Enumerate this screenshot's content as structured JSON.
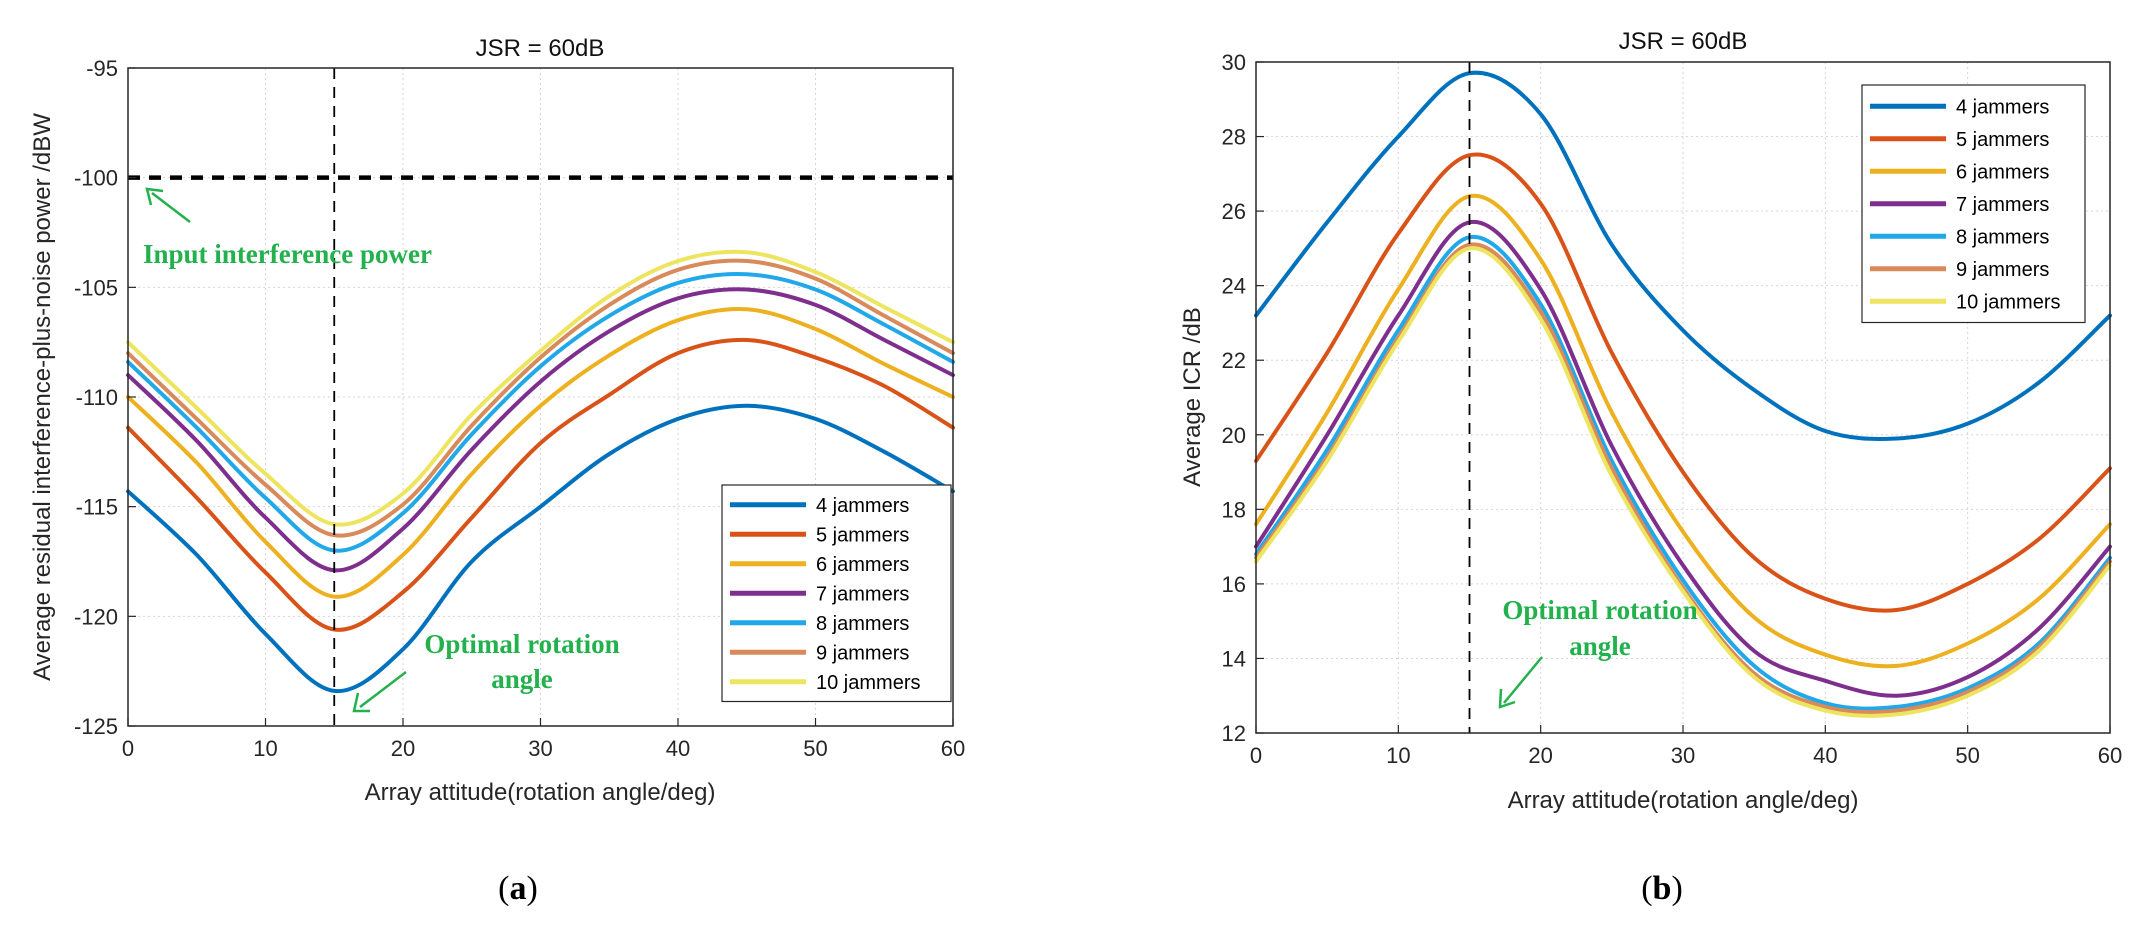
{
  "colors": {
    "4 jammers": "#0072bd",
    "5 jammers": "#d95319",
    "6 jammers": "#edb120",
    "7 jammers": "#7e2f8e",
    "8 jammers": "#20a8e8",
    "9 jammers": "#d98a5a",
    "10 jammers": "#ede560",
    "annotation": "#22b14c"
  },
  "panels": [
    {
      "caption_open": "(",
      "caption_letter": "a",
      "caption_close": ")",
      "annotations": [
        "Input interference power",
        "Optimal rotation",
        "angle"
      ],
      "input_power_line_y": -100,
      "optimal_angle_x": 15
    },
    {
      "caption_open": "(",
      "caption_letter": "b",
      "caption_close": ")",
      "annotations": [
        "Optimal rotation",
        "angle"
      ],
      "optimal_angle_x": 15
    }
  ],
  "chart_data": [
    {
      "type": "line",
      "title": "JSR = 60dB",
      "xlabel": "Array attitude(rotation angle/deg)",
      "ylabel": "Average residual interference-plus-noise power /dBW",
      "xlim": [
        0,
        60
      ],
      "ylim": [
        -125,
        -95
      ],
      "xticks": [
        0,
        10,
        20,
        30,
        40,
        50,
        60
      ],
      "yticks": [
        -95,
        -100,
        -105,
        -110,
        -115,
        -120,
        -125
      ],
      "grid": true,
      "legend_position": "bottom-right",
      "x": [
        0,
        5,
        10,
        15,
        20,
        25,
        30,
        35,
        40,
        45,
        50,
        55,
        60
      ],
      "series": [
        {
          "name": "4 jammers",
          "values": [
            -114.3,
            -117.2,
            -120.8,
            -123.4,
            -121.5,
            -117.5,
            -115.0,
            -112.6,
            -111.0,
            -110.4,
            -111.0,
            -112.5,
            -114.3
          ]
        },
        {
          "name": "5 jammers",
          "values": [
            -111.4,
            -114.6,
            -118.0,
            -120.6,
            -118.9,
            -115.5,
            -112.1,
            -109.9,
            -108.0,
            -107.4,
            -108.2,
            -109.5,
            -111.4
          ]
        },
        {
          "name": "6 jammers",
          "values": [
            -110.0,
            -113.0,
            -116.6,
            -119.1,
            -117.2,
            -113.5,
            -110.4,
            -108.1,
            -106.5,
            -106.0,
            -106.9,
            -108.5,
            -110.0
          ]
        },
        {
          "name": "7 jammers",
          "values": [
            -109.0,
            -112.0,
            -115.5,
            -117.9,
            -116.0,
            -112.4,
            -109.3,
            -107.0,
            -105.5,
            -105.1,
            -105.8,
            -107.4,
            -109.0
          ]
        },
        {
          "name": "8 jammers",
          "values": [
            -108.4,
            -111.4,
            -114.6,
            -117.0,
            -115.3,
            -111.7,
            -108.6,
            -106.3,
            -104.8,
            -104.4,
            -105.1,
            -106.7,
            -108.4
          ]
        },
        {
          "name": "9 jammers",
          "values": [
            -108.0,
            -111.0,
            -114.0,
            -116.3,
            -114.9,
            -111.3,
            -108.2,
            -105.8,
            -104.2,
            -103.8,
            -104.6,
            -106.3,
            -108.0
          ]
        },
        {
          "name": "10 jammers",
          "values": [
            -107.5,
            -110.5,
            -113.5,
            -115.8,
            -114.4,
            -110.8,
            -107.9,
            -105.4,
            -103.8,
            -103.4,
            -104.3,
            -105.9,
            -107.5
          ]
        }
      ]
    },
    {
      "type": "line",
      "title": "JSR = 60dB",
      "xlabel": "Array attitude(rotation angle/deg)",
      "ylabel": "Average ICR /dB",
      "xlim": [
        0,
        60
      ],
      "ylim": [
        12,
        30
      ],
      "xticks": [
        0,
        10,
        20,
        30,
        40,
        50,
        60
      ],
      "yticks": [
        12,
        14,
        16,
        18,
        20,
        22,
        24,
        26,
        28,
        30
      ],
      "grid": true,
      "legend_position": "top-right",
      "x": [
        0,
        5,
        10,
        15,
        20,
        25,
        30,
        35,
        40,
        45,
        50,
        55,
        60
      ],
      "series": [
        {
          "name": "4 jammers",
          "values": [
            23.2,
            25.7,
            28.0,
            29.7,
            28.6,
            25.1,
            22.8,
            21.2,
            20.1,
            19.9,
            20.3,
            21.4,
            23.2
          ]
        },
        {
          "name": "5 jammers",
          "values": [
            19.3,
            22.2,
            25.4,
            27.5,
            26.2,
            22.2,
            19.0,
            16.7,
            15.6,
            15.3,
            16.0,
            17.2,
            19.1
          ]
        },
        {
          "name": "6 jammers",
          "values": [
            17.6,
            20.6,
            23.9,
            26.4,
            24.7,
            20.6,
            17.4,
            15.1,
            14.1,
            13.8,
            14.4,
            15.6,
            17.6
          ]
        },
        {
          "name": "7 jammers",
          "values": [
            17.0,
            20.0,
            23.2,
            25.7,
            23.9,
            19.7,
            16.5,
            14.2,
            13.4,
            13.0,
            13.5,
            14.8,
            17.0
          ]
        },
        {
          "name": "8 jammers",
          "values": [
            16.8,
            19.6,
            22.8,
            25.3,
            23.5,
            19.3,
            16.1,
            13.8,
            12.8,
            12.7,
            13.2,
            14.4,
            16.7
          ]
        },
        {
          "name": "9 jammers",
          "values": [
            16.7,
            19.4,
            22.6,
            25.1,
            23.3,
            19.1,
            15.9,
            13.6,
            12.7,
            12.6,
            13.1,
            14.3,
            16.6
          ]
        },
        {
          "name": "10 jammers",
          "values": [
            16.6,
            19.3,
            22.5,
            25.0,
            23.1,
            18.9,
            15.8,
            13.5,
            12.6,
            12.5,
            13.0,
            14.2,
            16.5
          ]
        }
      ]
    }
  ]
}
